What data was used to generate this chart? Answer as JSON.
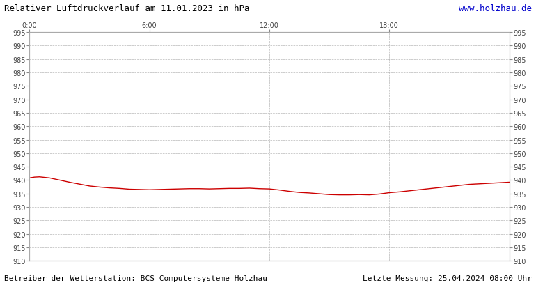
{
  "title": "Relativer Luftdruckverlauf am 11.01.2023 in hPa",
  "url_text": "www.holzhau.de",
  "bottom_left": "Betreiber der Wetterstation: BCS Computersysteme Holzhau",
  "bottom_right": "Letzte Messung: 25.04.2024 08:00 Uhr",
  "ymin": 910,
  "ymax": 995,
  "ytick_step": 5,
  "xmin": 0,
  "xmax": 24,
  "xtick_positions": [
    0,
    6,
    12,
    18
  ],
  "xtick_labels": [
    "0:00",
    "6:00",
    "12:00",
    "18:00"
  ],
  "line_color": "#cc0000",
  "grid_color": "#b0b0b0",
  "background_color": "#ffffff",
  "plot_bg_color": "#ffffff",
  "pressure_x": [
    0,
    0.25,
    0.5,
    0.75,
    1.0,
    1.25,
    1.5,
    1.75,
    2.0,
    2.5,
    3.0,
    3.5,
    4.0,
    4.5,
    5.0,
    5.5,
    6.0,
    6.5,
    7.0,
    7.5,
    8.0,
    8.5,
    9.0,
    9.5,
    10.0,
    10.5,
    11.0,
    11.5,
    12.0,
    12.5,
    13.0,
    13.5,
    14.0,
    14.5,
    15.0,
    15.5,
    16.0,
    16.5,
    17.0,
    17.5,
    18.0,
    18.5,
    19.0,
    19.5,
    20.0,
    20.5,
    21.0,
    21.5,
    22.0,
    22.5,
    23.0,
    23.5,
    24.0
  ],
  "pressure_y": [
    940.8,
    941.1,
    941.2,
    941.0,
    940.8,
    940.4,
    940.0,
    939.6,
    939.2,
    938.5,
    937.8,
    937.4,
    937.1,
    936.9,
    936.6,
    936.5,
    936.4,
    936.5,
    936.6,
    936.7,
    936.8,
    936.8,
    936.7,
    936.8,
    936.9,
    936.9,
    937.0,
    936.8,
    936.7,
    936.3,
    935.8,
    935.4,
    935.2,
    934.9,
    934.6,
    934.5,
    934.5,
    934.6,
    934.5,
    934.8,
    935.3,
    935.6,
    936.0,
    936.4,
    936.8,
    937.2,
    937.6,
    938.0,
    938.4,
    938.6,
    938.8,
    939.0,
    939.2
  ]
}
